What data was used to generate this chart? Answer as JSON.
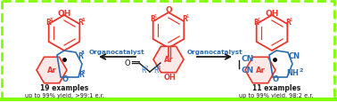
{
  "background_color": "#ffffff",
  "border_color": "#7fff00",
  "blue_color": "#2b6cb0",
  "red_color": "#e8362a",
  "black_color": "#1a1a1a",
  "left_label1": "19 examples",
  "left_label2": "up to 99% yield, >99:1 e.r.",
  "right_label1": "11 examples",
  "right_label2": "up to 99% yield, 98:2 e.r.",
  "left_arrow_label": "Organocatalyst",
  "right_arrow_label": "Organocatalyst"
}
